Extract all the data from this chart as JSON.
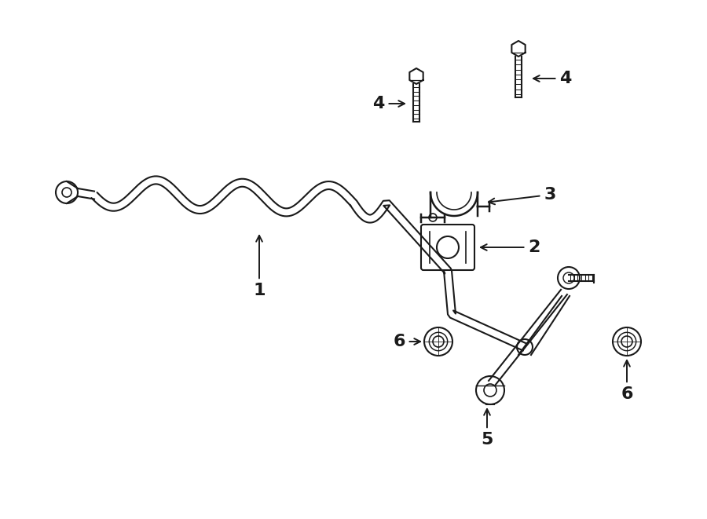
{
  "bg_color": "#ffffff",
  "line_color": "#1a1a1a",
  "lw": 1.5,
  "fig_width": 9.0,
  "fig_height": 6.61,
  "dpi": 100
}
